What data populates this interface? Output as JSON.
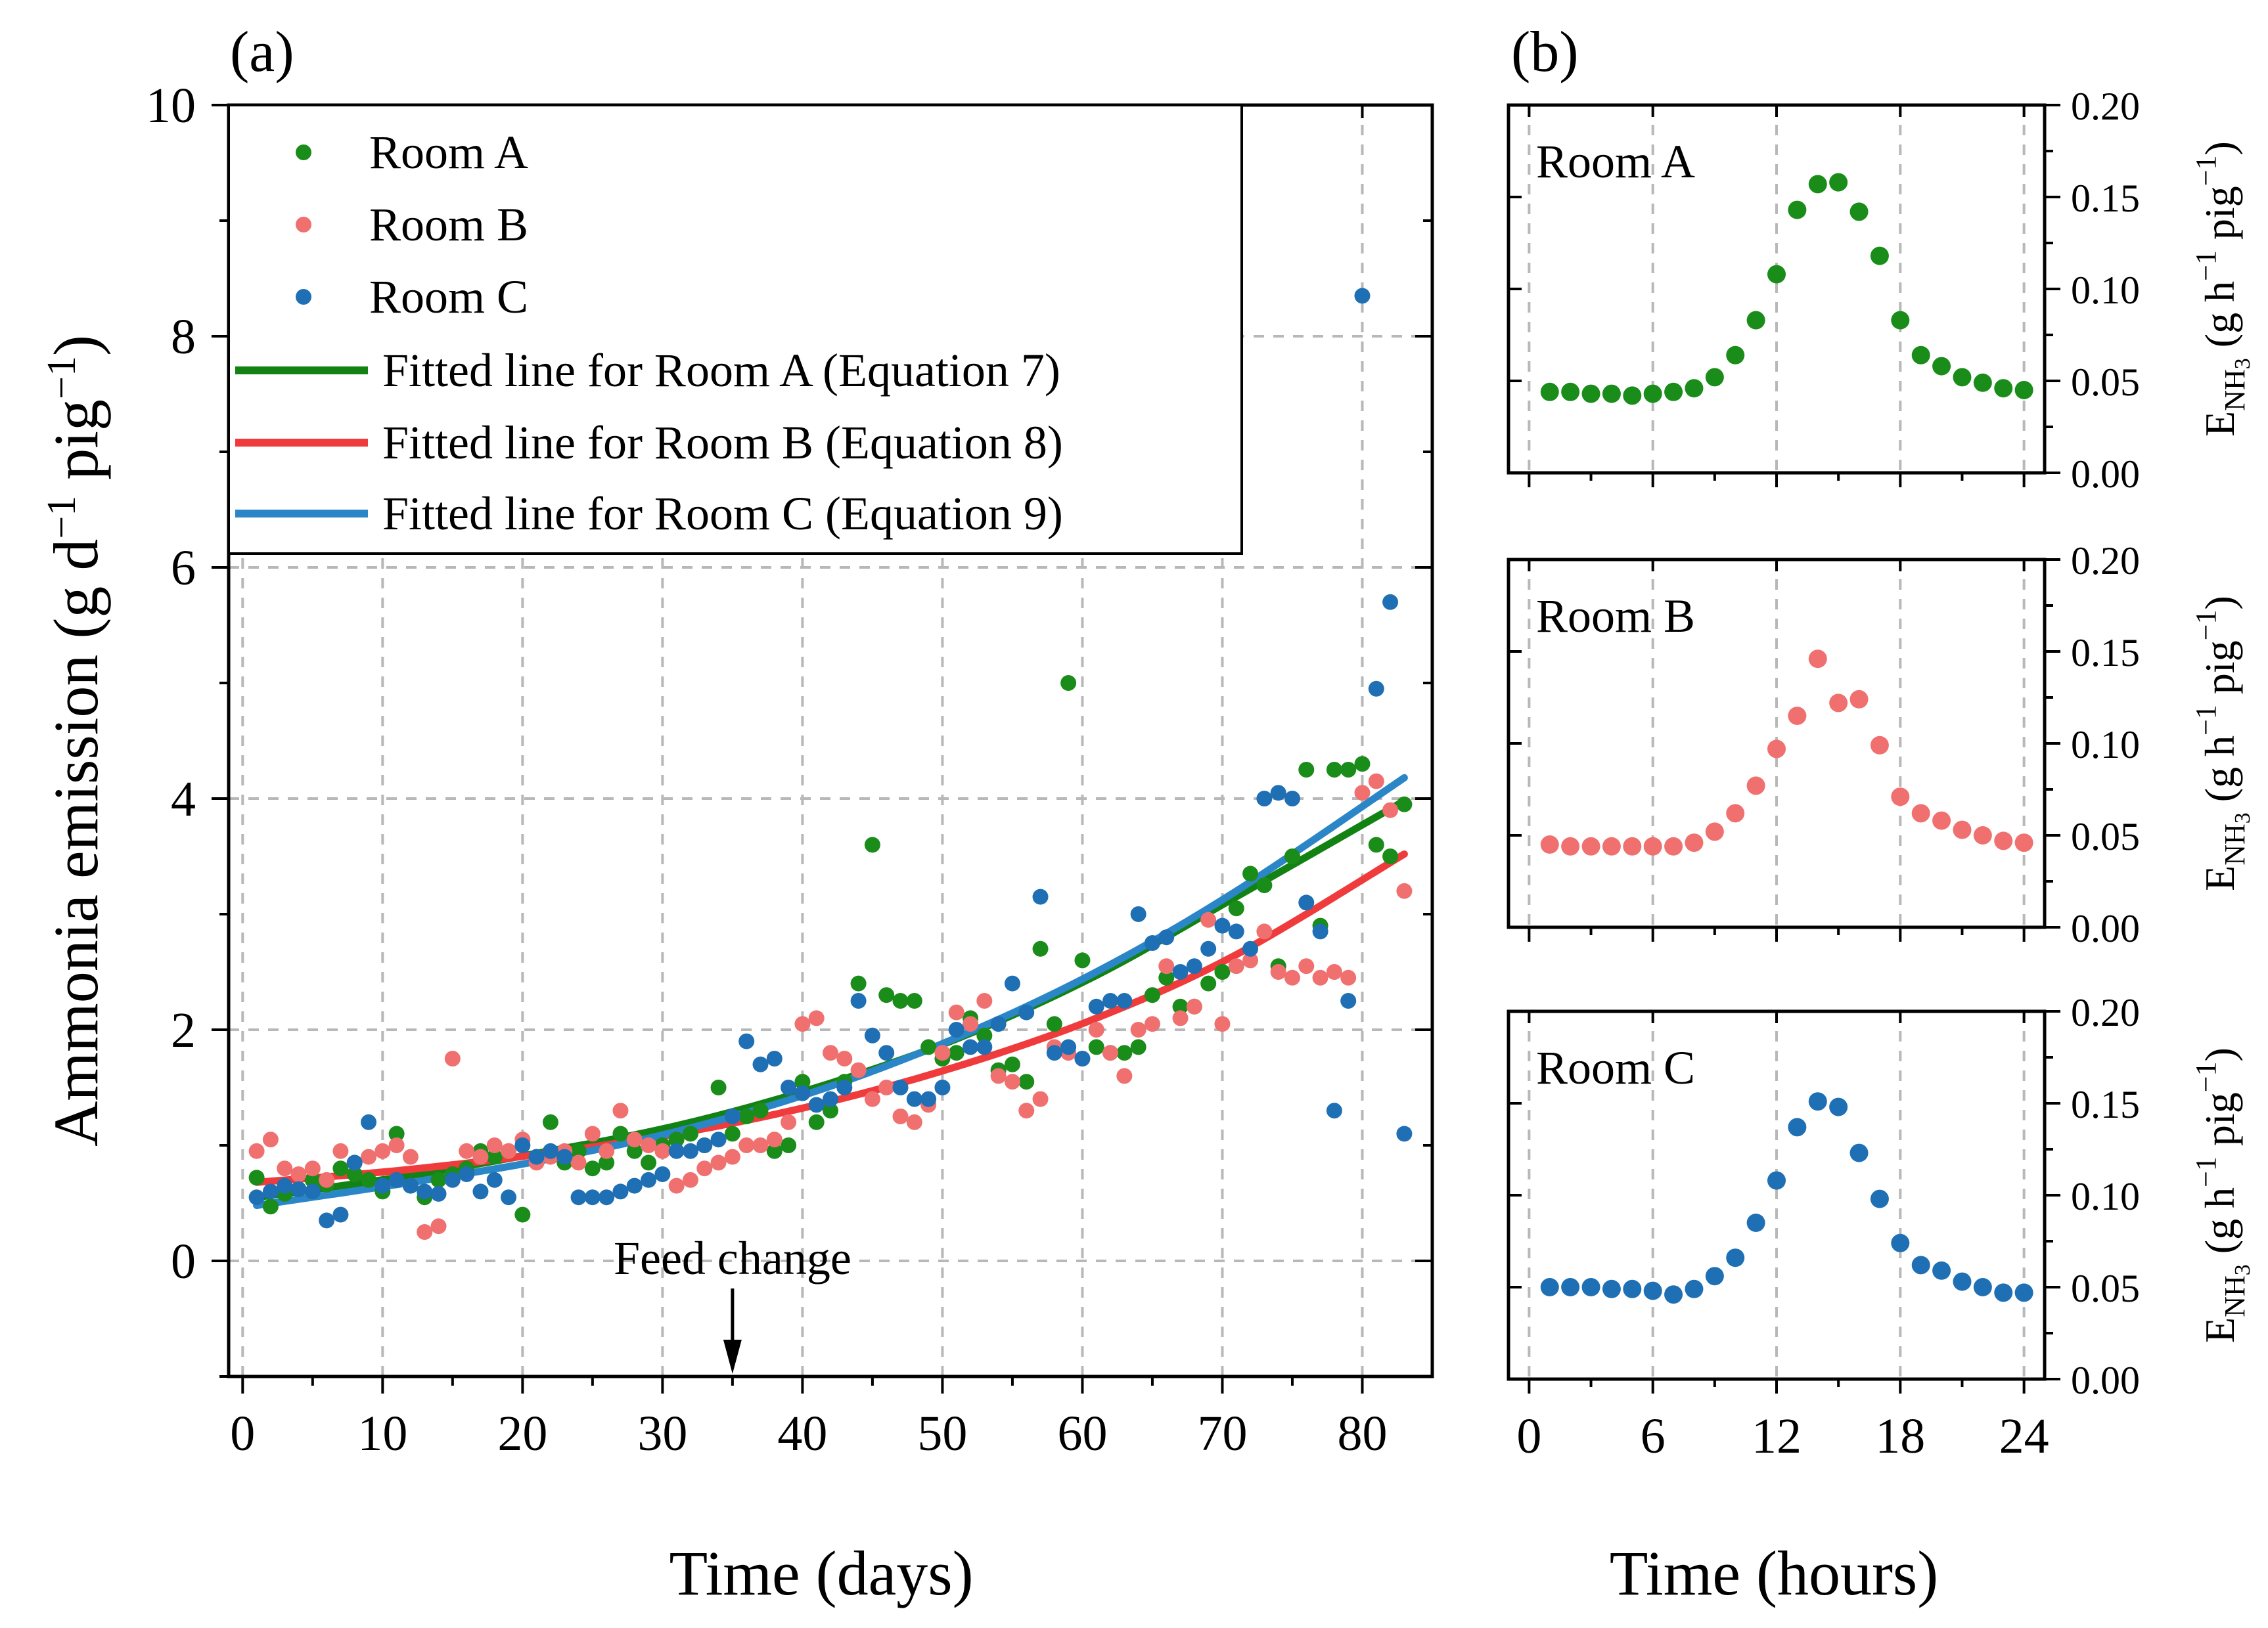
{
  "colors": {
    "room_a": "#1a8c1a",
    "room_b": "#f07070",
    "room_c": "#1f6fb4",
    "fit_a": "#128212",
    "fit_b": "#ef3b3b",
    "fit_c": "#2a86c7",
    "grid": "#b8b8b8"
  },
  "chart_data": [
    {
      "panel": "(a)",
      "type": "scatter",
      "xlabel": "Time (days)",
      "ylabel": "Ammonia emission (g d⁻¹ pig⁻¹)",
      "ylabel_main": "Ammonia emission",
      "ylabel_unit": "(g d",
      "ylabel_sup1": "−1",
      "ylabel_mid": " pig",
      "ylabel_sup2": "−1",
      "ylabel_close": ")",
      "xlim": [
        -1,
        85
      ],
      "ylim": [
        -1,
        10
      ],
      "xticks": [
        0,
        10,
        20,
        30,
        40,
        50,
        60,
        70,
        80
      ],
      "yticks": [
        0,
        2,
        4,
        6,
        8,
        10
      ],
      "grid": true,
      "legend_position": "top-left",
      "annotation": {
        "text": "Feed change",
        "x": 35
      },
      "series": [
        {
          "name": "Room A",
          "kind": "points",
          "color_key": "room_a",
          "x": [
            1,
            2,
            3,
            4,
            5,
            6,
            7,
            8,
            9,
            10,
            11,
            12,
            13,
            14,
            15,
            16,
            17,
            18,
            19,
            20,
            21,
            22,
            23,
            24,
            25,
            26,
            27,
            28,
            29,
            30,
            31,
            32,
            33,
            34,
            35,
            36,
            37,
            38,
            39,
            40,
            41,
            42,
            43,
            44,
            45,
            46,
            47,
            48,
            49,
            50,
            51,
            52,
            53,
            54,
            55,
            56,
            57,
            58,
            59,
            60,
            61,
            62,
            63,
            64,
            65,
            66,
            67,
            68,
            69,
            70,
            71,
            72,
            73,
            74,
            75,
            76,
            77,
            78,
            79,
            80,
            81,
            82,
            83
          ],
          "y": [
            0.72,
            0.47,
            0.58,
            0.62,
            0.7,
            0.66,
            0.8,
            0.75,
            0.7,
            0.6,
            1.1,
            0.65,
            0.55,
            0.7,
            0.75,
            0.8,
            0.95,
            0.9,
            0.95,
            0.4,
            0.9,
            1.2,
            0.85,
            0.95,
            0.8,
            0.85,
            1.1,
            0.95,
            0.85,
            1.0,
            1.05,
            1.1,
            1.0,
            1.5,
            1.1,
            1.25,
            1.3,
            0.95,
            1.0,
            1.55,
            1.2,
            1.3,
            1.55,
            2.4,
            3.6,
            2.3,
            2.25,
            2.25,
            1.85,
            1.75,
            1.8,
            2.1,
            1.95,
            1.65,
            1.7,
            1.55,
            2.7,
            2.05,
            5.0,
            2.6,
            1.85,
            1.8,
            1.8,
            1.85,
            2.3,
            2.45,
            2.2,
            2.2,
            2.4,
            2.5,
            3.05,
            3.35,
            3.25,
            2.55,
            3.5,
            4.25,
            2.9,
            4.25,
            4.25,
            4.3,
            3.6,
            3.5,
            3.95
          ]
        },
        {
          "name": "Room B",
          "kind": "points",
          "color_key": "room_b",
          "x": [
            1,
            2,
            3,
            4,
            5,
            6,
            7,
            8,
            9,
            10,
            11,
            12,
            13,
            14,
            15,
            16,
            17,
            18,
            19,
            20,
            21,
            22,
            23,
            24,
            25,
            26,
            27,
            28,
            29,
            30,
            31,
            32,
            33,
            34,
            35,
            36,
            37,
            38,
            39,
            40,
            41,
            42,
            43,
            44,
            45,
            46,
            47,
            48,
            49,
            50,
            51,
            52,
            53,
            54,
            55,
            56,
            57,
            58,
            59,
            60,
            61,
            62,
            63,
            64,
            65,
            66,
            67,
            68,
            69,
            70,
            71,
            72,
            73,
            74,
            75,
            76,
            77,
            78,
            79,
            80,
            81,
            82,
            83
          ],
          "y": [
            0.95,
            1.05,
            0.8,
            0.75,
            0.8,
            0.7,
            0.95,
            0.85,
            0.9,
            0.95,
            1.0,
            0.9,
            0.25,
            0.3,
            1.75,
            0.95,
            0.9,
            1.0,
            0.95,
            1.05,
            0.85,
            0.9,
            0.95,
            0.85,
            1.1,
            0.95,
            1.3,
            1.05,
            1.0,
            0.95,
            0.65,
            0.7,
            0.8,
            0.85,
            0.9,
            1.0,
            1.0,
            1.05,
            1.2,
            2.05,
            2.1,
            1.8,
            1.75,
            1.65,
            1.4,
            1.5,
            1.25,
            1.2,
            1.35,
            1.8,
            2.15,
            2.05,
            2.25,
            1.6,
            1.55,
            1.3,
            1.4,
            1.85,
            1.8,
            1.75,
            2.0,
            1.8,
            1.6,
            2.0,
            2.05,
            2.55,
            2.1,
            2.2,
            2.95,
            2.05,
            2.55,
            2.6,
            2.85,
            2.5,
            2.45,
            2.55,
            2.45,
            2.5,
            2.45,
            4.05,
            4.15,
            3.9,
            3.2
          ]
        },
        {
          "name": "Room C",
          "kind": "points",
          "color_key": "room_c",
          "x": [
            1,
            2,
            3,
            4,
            5,
            6,
            7,
            8,
            9,
            10,
            11,
            12,
            13,
            14,
            15,
            16,
            17,
            18,
            19,
            20,
            21,
            22,
            23,
            24,
            25,
            26,
            27,
            28,
            29,
            30,
            31,
            32,
            33,
            34,
            35,
            36,
            37,
            38,
            39,
            40,
            41,
            42,
            43,
            44,
            45,
            46,
            47,
            48,
            49,
            50,
            51,
            52,
            53,
            54,
            55,
            56,
            57,
            58,
            59,
            60,
            61,
            62,
            63,
            64,
            65,
            66,
            67,
            68,
            69,
            70,
            71,
            72,
            73,
            74,
            75,
            76,
            77,
            78,
            79,
            80,
            81,
            82,
            83
          ],
          "y": [
            0.55,
            0.6,
            0.65,
            0.62,
            0.6,
            0.35,
            0.4,
            0.85,
            1.2,
            0.65,
            0.7,
            0.65,
            0.6,
            0.58,
            0.7,
            0.75,
            0.6,
            0.7,
            0.55,
            1.0,
            0.9,
            0.95,
            0.9,
            0.55,
            0.55,
            0.55,
            0.6,
            0.65,
            0.7,
            0.75,
            0.95,
            0.95,
            1.0,
            1.05,
            1.25,
            1.9,
            1.7,
            1.75,
            1.5,
            1.45,
            1.35,
            1.4,
            1.5,
            2.25,
            1.95,
            1.8,
            1.5,
            1.4,
            1.4,
            1.5,
            2.0,
            1.85,
            1.85,
            2.05,
            2.4,
            2.15,
            3.15,
            1.8,
            1.85,
            1.75,
            2.2,
            2.25,
            2.25,
            3.0,
            2.75,
            2.8,
            2.5,
            2.55,
            2.7,
            2.9,
            2.85,
            2.7,
            4.0,
            4.05,
            4.0,
            3.1,
            2.85,
            1.3,
            2.25,
            8.35,
            4.95,
            5.7,
            1.1
          ]
        },
        {
          "name": "Fitted line for Room A (Equation 7)",
          "kind": "line",
          "color_key": "fit_a",
          "x": [
            1,
            11,
            21,
            31,
            41,
            51,
            61,
            71,
            83
          ],
          "y": [
            0.55,
            0.72,
            0.93,
            1.17,
            1.5,
            1.92,
            2.47,
            3.15,
            3.98
          ]
        },
        {
          "name": "Fitted line for Room B (Equation 8)",
          "kind": "line",
          "color_key": "fit_b",
          "x": [
            1,
            11,
            21,
            31,
            41,
            51,
            61,
            71,
            83
          ],
          "y": [
            0.68,
            0.78,
            0.92,
            1.1,
            1.35,
            1.68,
            2.1,
            2.65,
            3.52
          ]
        },
        {
          "name": "Fitted line for Room C (Equation 9)",
          "kind": "line",
          "color_key": "fit_c",
          "x": [
            1,
            11,
            21,
            31,
            41,
            51,
            61,
            71,
            83
          ],
          "y": [
            0.48,
            0.66,
            0.86,
            1.12,
            1.47,
            1.93,
            2.5,
            3.2,
            4.18
          ]
        }
      ]
    },
    {
      "panel": "(b)",
      "type": "scatter",
      "xlabel": "Time (hours)",
      "ylabel": "E_NH3 (g h⁻¹ pig⁻¹)",
      "ylabel_e": "E",
      "ylabel_sub": "NH",
      "ylabel_sub3": "3",
      "ylabel_rest": " (g h",
      "ylabel_sup1": "−1",
      "ylabel_mid": " pig",
      "ylabel_sup2": "−1",
      "ylabel_close": ")",
      "xlim": [
        -1,
        25
      ],
      "ylim": [
        0,
        0.2
      ],
      "xticks": [
        0,
        6,
        12,
        18,
        24
      ],
      "yticks": [
        "0.00",
        "0.05",
        "0.10",
        "0.15",
        "0.20"
      ],
      "grid": true,
      "subplots": [
        {
          "name": "Room A",
          "color_key": "room_a",
          "x": [
            1,
            2,
            3,
            4,
            5,
            6,
            7,
            8,
            9,
            10,
            11,
            12,
            13,
            14,
            15,
            16,
            17,
            18,
            19,
            20,
            21,
            22,
            23,
            24
          ],
          "y": [
            0.044,
            0.044,
            0.043,
            0.043,
            0.042,
            0.043,
            0.044,
            0.046,
            0.052,
            0.064,
            0.083,
            0.108,
            0.143,
            0.157,
            0.158,
            0.142,
            0.118,
            0.083,
            0.064,
            0.058,
            0.052,
            0.049,
            0.046,
            0.045
          ]
        },
        {
          "name": "Room B",
          "color_key": "room_b",
          "x": [
            1,
            2,
            3,
            4,
            5,
            6,
            7,
            8,
            9,
            10,
            11,
            12,
            13,
            14,
            15,
            16,
            17,
            18,
            19,
            20,
            21,
            22,
            23,
            24
          ],
          "y": [
            0.045,
            0.044,
            0.044,
            0.044,
            0.044,
            0.044,
            0.044,
            0.046,
            0.052,
            0.062,
            0.077,
            0.097,
            0.115,
            0.146,
            0.122,
            0.124,
            0.099,
            0.071,
            0.062,
            0.058,
            0.053,
            0.05,
            0.047,
            0.046
          ]
        },
        {
          "name": "Room C",
          "color_key": "room_c",
          "x": [
            1,
            2,
            3,
            4,
            5,
            6,
            7,
            8,
            9,
            10,
            11,
            12,
            13,
            14,
            15,
            16,
            17,
            18,
            19,
            20,
            21,
            22,
            23,
            24
          ],
          "y": [
            0.05,
            0.05,
            0.05,
            0.049,
            0.049,
            0.048,
            0.046,
            0.049,
            0.056,
            0.066,
            0.085,
            0.108,
            0.137,
            0.151,
            0.148,
            0.123,
            0.098,
            0.074,
            0.062,
            0.059,
            0.053,
            0.05,
            0.047,
            0.047
          ]
        }
      ]
    }
  ]
}
